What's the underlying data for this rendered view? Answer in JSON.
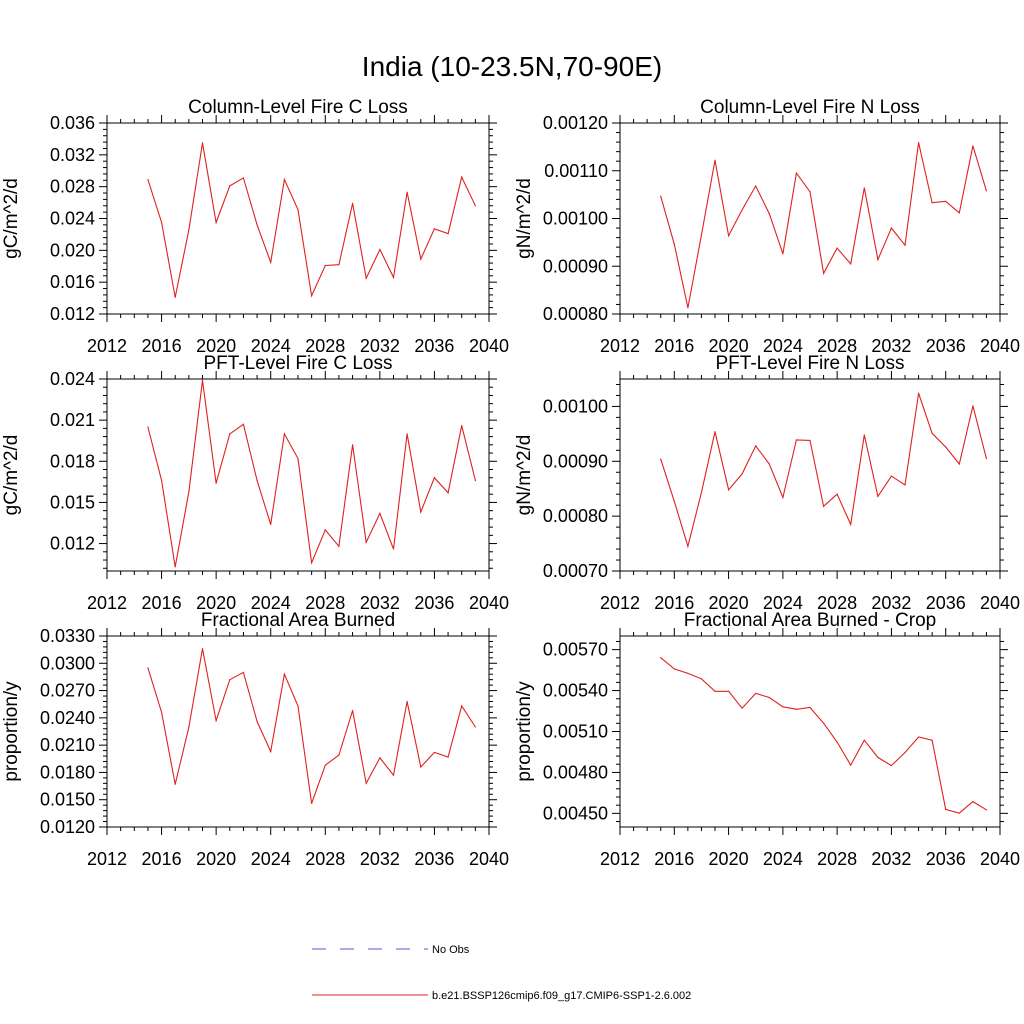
{
  "figure_title": "India (10-23.5N,70-90E)",
  "legend": [
    {
      "label": "No Obs",
      "color": "#5a5ad6",
      "dash": "dashed"
    },
    {
      "label": "b.e21.BSSP126cmip6.f09_g17.CMIP6-SSP1-2.6.002",
      "color": "#e02020",
      "dash": "solid"
    }
  ],
  "chart_data": [
    {
      "type": "line",
      "title": "Column-Level Fire C Loss",
      "ylabel": "gC/m^2/d",
      "xlim": [
        2012,
        2040
      ],
      "xticks": [
        2012,
        2016,
        2020,
        2024,
        2028,
        2032,
        2036,
        2040
      ],
      "xtick_labels": [
        "2012",
        "2016",
        "2020",
        "2024",
        "2028",
        "2032",
        "2036",
        "2040"
      ],
      "ylim": [
        0.012,
        0.036
      ],
      "yticks": [
        0.012,
        0.016,
        0.02,
        0.024,
        0.028,
        0.032,
        0.036
      ],
      "ytick_labels": [
        "0.012",
        "0.016",
        "0.020",
        "0.024",
        "0.028",
        "0.032",
        "0.036"
      ],
      "x": [
        2015,
        2016,
        2017,
        2018,
        2019,
        2020,
        2021,
        2022,
        2023,
        2024,
        2025,
        2026,
        2027,
        2028,
        2029,
        2030,
        2031,
        2032,
        2033,
        2034,
        2035,
        2036,
        2037,
        2038,
        2039
      ],
      "series": [
        {
          "name": "b.e21.BSSP126cmip6.f09_g17.CMIP6-SSP1-2.6.002",
          "color": "#e02020",
          "values": [
            0.0289,
            0.0235,
            0.0141,
            0.0226,
            0.0335,
            0.0235,
            0.0281,
            0.0291,
            0.0232,
            0.0185,
            0.0289,
            0.0251,
            0.0143,
            0.0181,
            0.0182,
            0.0259,
            0.0165,
            0.0201,
            0.0166,
            0.0273,
            0.0189,
            0.0227,
            0.0221,
            0.0292,
            0.0256
          ]
        }
      ]
    },
    {
      "type": "line",
      "title": "Column-Level Fire N Loss",
      "ylabel": "gN/m^2/d",
      "xlim": [
        2012,
        2040
      ],
      "xticks": [
        2012,
        2016,
        2020,
        2024,
        2028,
        2032,
        2036,
        2040
      ],
      "xtick_labels": [
        "2012",
        "2016",
        "2020",
        "2024",
        "2028",
        "2032",
        "2036",
        "2040"
      ],
      "ylim": [
        0.0008,
        0.0012
      ],
      "yticks": [
        0.0008,
        0.0009,
        0.001,
        0.0011,
        0.0012
      ],
      "ytick_labels": [
        "0.00080",
        "0.00090",
        "0.00100",
        "0.00110",
        "0.00120"
      ],
      "x": [
        2015,
        2016,
        2017,
        2018,
        2019,
        2020,
        2021,
        2022,
        2023,
        2024,
        2025,
        2026,
        2027,
        2028,
        2029,
        2030,
        2031,
        2032,
        2033,
        2034,
        2035,
        2036,
        2037,
        2038,
        2039
      ],
      "series": [
        {
          "name": "b.e21.BSSP126cmip6.f09_g17.CMIP6-SSP1-2.6.002",
          "color": "#e02020",
          "values": [
            0.001047,
            0.000946,
            0.000813,
            0.000965,
            0.001122,
            0.000964,
            0.001018,
            0.001068,
            0.00101,
            0.000926,
            0.001095,
            0.001056,
            0.000885,
            0.000938,
            0.000905,
            0.001064,
            0.000914,
            0.00098,
            0.000944,
            0.001159,
            0.001033,
            0.001036,
            0.001012,
            0.001152,
            0.001058
          ]
        }
      ]
    },
    {
      "type": "line",
      "title": "PFT-Level Fire C Loss",
      "ylabel": "gC/m^2/d",
      "xlim": [
        2012,
        2040
      ],
      "xticks": [
        2012,
        2016,
        2020,
        2024,
        2028,
        2032,
        2036,
        2040
      ],
      "xtick_labels": [
        "2012",
        "2016",
        "2020",
        "2024",
        "2028",
        "2032",
        "2036",
        "2040"
      ],
      "ylim": [
        0.01,
        0.024
      ],
      "yticks": [
        0.012,
        0.015,
        0.018,
        0.021,
        0.024
      ],
      "ytick_labels": [
        "0.012",
        "0.015",
        "0.018",
        "0.021",
        "0.024"
      ],
      "x": [
        2015,
        2016,
        2017,
        2018,
        2019,
        2020,
        2021,
        2022,
        2023,
        2024,
        2025,
        2026,
        2027,
        2028,
        2029,
        2030,
        2031,
        2032,
        2033,
        2034,
        2035,
        2036,
        2037,
        2038,
        2039
      ],
      "series": [
        {
          "name": "b.e21.BSSP126cmip6.f09_g17.CMIP6-SSP1-2.6.002",
          "color": "#e02020",
          "values": [
            0.0205,
            0.0166,
            0.0103,
            0.0158,
            0.0239,
            0.0164,
            0.02,
            0.0207,
            0.0166,
            0.0134,
            0.02,
            0.0182,
            0.0106,
            0.013,
            0.0118,
            0.0192,
            0.0121,
            0.0142,
            0.0116,
            0.02,
            0.0143,
            0.0168,
            0.0157,
            0.0206,
            0.0166
          ]
        }
      ]
    },
    {
      "type": "line",
      "title": "PFT-Level Fire N Loss",
      "ylabel": "gN/m^2/d",
      "xlim": [
        2012,
        2040
      ],
      "xticks": [
        2012,
        2016,
        2020,
        2024,
        2028,
        2032,
        2036,
        2040
      ],
      "xtick_labels": [
        "2012",
        "2016",
        "2020",
        "2024",
        "2028",
        "2032",
        "2036",
        "2040"
      ],
      "ylim": [
        0.0007,
        0.00105
      ],
      "yticks": [
        0.0007,
        0.0008,
        0.0009,
        0.001
      ],
      "ytick_labels": [
        "0.00070",
        "0.00080",
        "0.00090",
        "0.00100"
      ],
      "x": [
        2015,
        2016,
        2017,
        2018,
        2019,
        2020,
        2021,
        2022,
        2023,
        2024,
        2025,
        2026,
        2027,
        2028,
        2029,
        2030,
        2031,
        2032,
        2033,
        2034,
        2035,
        2036,
        2037,
        2038,
        2039
      ],
      "series": [
        {
          "name": "b.e21.BSSP126cmip6.f09_g17.CMIP6-SSP1-2.6.002",
          "color": "#e02020",
          "values": [
            0.000904,
            0.000827,
            0.000745,
            0.000843,
            0.000954,
            0.000848,
            0.000877,
            0.000928,
            0.000895,
            0.000834,
            0.000939,
            0.000938,
            0.000818,
            0.00084,
            0.000785,
            0.000948,
            0.000836,
            0.000873,
            0.000857,
            0.001024,
            0.000951,
            0.000926,
            0.000895,
            0.001001,
            0.000905
          ]
        }
      ]
    },
    {
      "type": "line",
      "title": "Fractional Area Burned",
      "ylabel": "proportion/y",
      "xlim": [
        2012,
        2040
      ],
      "xticks": [
        2012,
        2016,
        2020,
        2024,
        2028,
        2032,
        2036,
        2040
      ],
      "xtick_labels": [
        "2012",
        "2016",
        "2020",
        "2024",
        "2028",
        "2032",
        "2036",
        "2040"
      ],
      "ylim": [
        0.012,
        0.033
      ],
      "yticks": [
        0.012,
        0.015,
        0.018,
        0.021,
        0.024,
        0.027,
        0.03,
        0.033
      ],
      "ytick_labels": [
        "0.0120",
        "0.0150",
        "0.0180",
        "0.0210",
        "0.0240",
        "0.0270",
        "0.0300",
        "0.0330"
      ],
      "x": [
        2015,
        2016,
        2017,
        2018,
        2019,
        2020,
        2021,
        2022,
        2023,
        2024,
        2025,
        2026,
        2027,
        2028,
        2029,
        2030,
        2031,
        2032,
        2033,
        2034,
        2035,
        2036,
        2037,
        2038,
        2039
      ],
      "series": [
        {
          "name": "b.e21.BSSP126cmip6.f09_g17.CMIP6-SSP1-2.6.002",
          "color": "#e02020",
          "values": [
            0.0295,
            0.0246,
            0.0167,
            0.023,
            0.0316,
            0.0237,
            0.0282,
            0.029,
            0.0236,
            0.0203,
            0.0288,
            0.0253,
            0.0146,
            0.0188,
            0.0199,
            0.0248,
            0.0168,
            0.0196,
            0.0177,
            0.0258,
            0.0186,
            0.0202,
            0.0197,
            0.0253,
            0.023
          ]
        }
      ]
    },
    {
      "type": "line",
      "title": "Fractional Area Burned - Crop",
      "ylabel": "proportion/y",
      "xlim": [
        2012,
        2040
      ],
      "xticks": [
        2012,
        2016,
        2020,
        2024,
        2028,
        2032,
        2036,
        2040
      ],
      "xtick_labels": [
        "2012",
        "2016",
        "2020",
        "2024",
        "2028",
        "2032",
        "2036",
        "2040"
      ],
      "ylim": [
        0.0044,
        0.0058
      ],
      "yticks": [
        0.0045,
        0.0048,
        0.0051,
        0.0054,
        0.0057
      ],
      "ytick_labels": [
        "0.00450",
        "0.00480",
        "0.00510",
        "0.00540",
        "0.00570"
      ],
      "x": [
        2015,
        2016,
        2017,
        2018,
        2019,
        2020,
        2021,
        2022,
        2023,
        2024,
        2025,
        2026,
        2027,
        2028,
        2029,
        2030,
        2031,
        2032,
        2033,
        2034,
        2035,
        2036,
        2037,
        2038,
        2039
      ],
      "series": [
        {
          "name": "b.e21.BSSP126cmip6.f09_g17.CMIP6-SSP1-2.6.002",
          "color": "#e02020",
          "values": [
            0.005641,
            0.005559,
            0.005526,
            0.005486,
            0.005395,
            0.005395,
            0.005271,
            0.005379,
            0.005349,
            0.005281,
            0.005263,
            0.005276,
            0.005161,
            0.005023,
            0.004854,
            0.005036,
            0.00491,
            0.00485,
            0.004946,
            0.00506,
            0.005036,
            0.004529,
            0.004502,
            0.004586,
            0.004526
          ]
        }
      ]
    }
  ]
}
